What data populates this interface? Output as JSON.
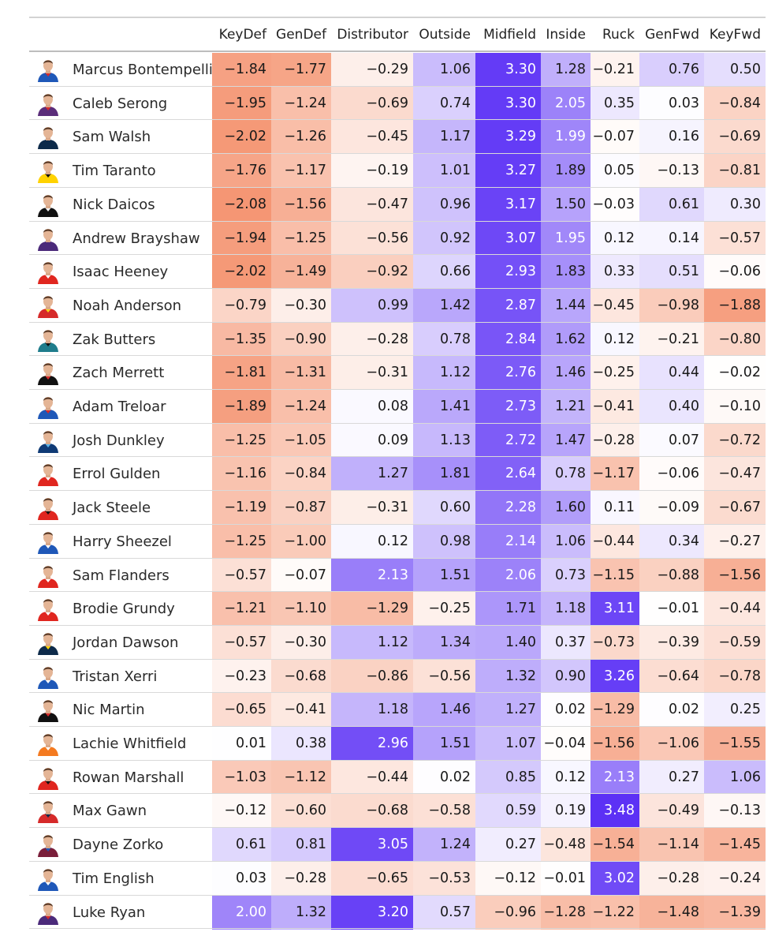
{
  "chart_data": {
    "type": "heatmap",
    "columns": [
      "KeyDef",
      "GenDef",
      "Distributor",
      "Outside",
      "Midfield",
      "Inside",
      "Ruck",
      "GenFwd",
      "KeyFwd"
    ],
    "color_scale": {
      "negative": "#f4906c",
      "zero": "#ffffff",
      "positive": "#5b30f5",
      "label_light_threshold": 1.9
    },
    "rows": [
      {
        "player": "Marcus Bontempelli",
        "kit": [
          "#1f58b8",
          "#d62a2a"
        ],
        "values": [
          "−1.84",
          "−1.77",
          "−0.29",
          "1.06",
          "3.30",
          "1.28",
          "−0.21",
          "0.76",
          "0.50"
        ]
      },
      {
        "player": "Caleb Serong",
        "kit": [
          "#5b2d7a",
          "#d62a2a"
        ],
        "values": [
          "−1.95",
          "−1.24",
          "−0.69",
          "0.74",
          "3.30",
          "2.05",
          "0.35",
          "0.03",
          "−0.84"
        ]
      },
      {
        "player": "Sam Walsh",
        "kit": [
          "#0d2a4a",
          "#0d2a4a"
        ],
        "values": [
          "−2.02",
          "−1.26",
          "−0.45",
          "1.17",
          "3.29",
          "1.99",
          "−0.07",
          "0.16",
          "−0.69"
        ]
      },
      {
        "player": "Tim Taranto",
        "kit": [
          "#ffd200",
          "#111111"
        ],
        "values": [
          "−1.76",
          "−1.17",
          "−0.19",
          "1.01",
          "3.27",
          "1.89",
          "0.05",
          "−0.13",
          "−0.81"
        ]
      },
      {
        "player": "Nick Daicos",
        "kit": [
          "#111111",
          "#f2f2f2"
        ],
        "values": [
          "−2.08",
          "−1.56",
          "−0.47",
          "0.96",
          "3.17",
          "1.50",
          "−0.03",
          "0.61",
          "0.30"
        ]
      },
      {
        "player": "Andrew Brayshaw",
        "kit": [
          "#4b2a7a",
          "#4b2a7a"
        ],
        "values": [
          "−1.94",
          "−1.25",
          "−0.56",
          "0.92",
          "3.07",
          "1.95",
          "0.12",
          "0.14",
          "−0.57"
        ]
      },
      {
        "player": "Isaac Heeney",
        "kit": [
          "#e0261f",
          "#ffffff"
        ],
        "values": [
          "−2.02",
          "−1.49",
          "−0.92",
          "0.66",
          "2.93",
          "1.83",
          "0.33",
          "0.51",
          "−0.06"
        ]
      },
      {
        "player": "Noah Anderson",
        "kit": [
          "#d62a2a",
          "#f2d21a"
        ],
        "values": [
          "−0.79",
          "−0.30",
          "0.99",
          "1.42",
          "2.87",
          "1.44",
          "−0.45",
          "−0.98",
          "−1.88"
        ]
      },
      {
        "player": "Zak Butters",
        "kit": [
          "#1f7d8c",
          "#111111"
        ],
        "values": [
          "−1.35",
          "−0.90",
          "−0.28",
          "0.78",
          "2.84",
          "1.62",
          "0.12",
          "−0.21",
          "−0.80"
        ]
      },
      {
        "player": "Zach Merrett",
        "kit": [
          "#111111",
          "#d62a2a"
        ],
        "values": [
          "−1.81",
          "−1.31",
          "−0.31",
          "1.12",
          "2.76",
          "1.46",
          "−0.25",
          "0.44",
          "−0.02"
        ]
      },
      {
        "player": "Adam Treloar",
        "kit": [
          "#1f58b8",
          "#d62a2a"
        ],
        "values": [
          "−1.89",
          "−1.24",
          "0.08",
          "1.41",
          "2.73",
          "1.21",
          "−0.41",
          "0.40",
          "−0.10"
        ]
      },
      {
        "player": "Josh Dunkley",
        "kit": [
          "#0f3a75",
          "#5ab4ea"
        ],
        "values": [
          "−1.25",
          "−1.05",
          "0.09",
          "1.13",
          "2.72",
          "1.47",
          "−0.28",
          "0.07",
          "−0.72"
        ]
      },
      {
        "player": "Errol Gulden",
        "kit": [
          "#e0261f",
          "#ffffff"
        ],
        "values": [
          "−1.16",
          "−0.84",
          "1.27",
          "1.81",
          "2.64",
          "0.78",
          "−1.17",
          "−0.06",
          "−0.47"
        ]
      },
      {
        "player": "Jack Steele",
        "kit": [
          "#e0261f",
          "#111111"
        ],
        "values": [
          "−1.19",
          "−0.87",
          "−0.31",
          "0.60",
          "2.28",
          "1.60",
          "0.11",
          "−0.09",
          "−0.67"
        ]
      },
      {
        "player": "Harry Sheezel",
        "kit": [
          "#1f58b8",
          "#ffffff"
        ],
        "values": [
          "−1.25",
          "−1.00",
          "0.12",
          "0.98",
          "2.14",
          "1.06",
          "−0.44",
          "0.34",
          "−0.27"
        ]
      },
      {
        "player": "Sam Flanders",
        "kit": [
          "#e0261f",
          "#ffffff"
        ],
        "values": [
          "−0.57",
          "−0.07",
          "2.13",
          "1.51",
          "2.06",
          "0.73",
          "−1.15",
          "−0.88",
          "−1.56"
        ]
      },
      {
        "player": "Brodie Grundy",
        "kit": [
          "#e0261f",
          "#ffffff"
        ],
        "values": [
          "−1.21",
          "−1.10",
          "−1.29",
          "−0.25",
          "1.71",
          "1.18",
          "3.11",
          "−0.01",
          "−0.44"
        ]
      },
      {
        "player": "Jordan Dawson",
        "kit": [
          "#0d2a4a",
          "#ffd200"
        ],
        "values": [
          "−0.57",
          "−0.30",
          "1.12",
          "1.34",
          "1.40",
          "0.37",
          "−0.73",
          "−0.39",
          "−0.59"
        ]
      },
      {
        "player": "Tristan Xerri",
        "kit": [
          "#1f58b8",
          "#ffffff"
        ],
        "values": [
          "−0.23",
          "−0.68",
          "−0.86",
          "−0.56",
          "1.32",
          "0.90",
          "3.26",
          "−0.64",
          "−0.78"
        ]
      },
      {
        "player": "Nic Martin",
        "kit": [
          "#111111",
          "#d62a2a"
        ],
        "values": [
          "−0.65",
          "−0.41",
          "1.18",
          "1.46",
          "1.27",
          "0.02",
          "−1.29",
          "0.02",
          "0.25"
        ]
      },
      {
        "player": "Lachie Whitfield",
        "kit": [
          "#f47a20",
          "#ffffff"
        ],
        "values": [
          "0.01",
          "0.38",
          "2.96",
          "1.51",
          "1.07",
          "−0.04",
          "−1.56",
          "−1.06",
          "−1.55"
        ]
      },
      {
        "player": "Rowan Marshall",
        "kit": [
          "#e0261f",
          "#111111"
        ],
        "values": [
          "−1.03",
          "−1.12",
          "−0.44",
          "0.02",
          "0.85",
          "0.12",
          "2.13",
          "0.27",
          "1.06"
        ]
      },
      {
        "player": "Max Gawn",
        "kit": [
          "#d62a2a",
          "#0d2a4a"
        ],
        "values": [
          "−0.12",
          "−0.60",
          "−0.68",
          "−0.58",
          "0.59",
          "0.19",
          "3.48",
          "−0.49",
          "−0.13"
        ]
      },
      {
        "player": "Dayne Zorko",
        "kit": [
          "#7a1e3a",
          "#1f58b8"
        ],
        "values": [
          "0.61",
          "0.81",
          "3.05",
          "1.24",
          "0.27",
          "−0.48",
          "−1.54",
          "−1.14",
          "−1.45"
        ]
      },
      {
        "player": "Tim English",
        "kit": [
          "#1f58b8",
          "#ffffff"
        ],
        "values": [
          "0.03",
          "−0.28",
          "−0.65",
          "−0.53",
          "−0.12",
          "−0.01",
          "3.02",
          "−0.28",
          "−0.24"
        ]
      },
      {
        "player": "Luke Ryan",
        "kit": [
          "#4b2a7a",
          "#d62a2a"
        ],
        "values": [
          "2.00",
          "1.32",
          "3.20",
          "0.57",
          "−0.96",
          "−1.28",
          "−1.22",
          "−1.48",
          "−1.39"
        ]
      }
    ]
  }
}
